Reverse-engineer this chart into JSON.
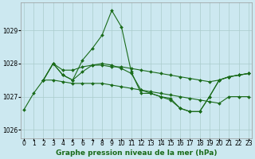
{
  "title": "Graphe pression niveau de la mer (hPa)",
  "bg_color": "#cce8f0",
  "grid_color": "#aacccc",
  "line_color": "#1a6b1a",
  "markersize": 2.0,
  "linewidth": 0.8,
  "series": [
    {
      "name": "spiky_line",
      "x": [
        0,
        1,
        2,
        3,
        4,
        5,
        6,
        7,
        8,
        9,
        10,
        11,
        12,
        13,
        14,
        15,
        16,
        17,
        18,
        19,
        20,
        21,
        22,
        23
      ],
      "y": [
        1026.6,
        1027.1,
        1027.5,
        1028.0,
        1027.65,
        1027.5,
        1028.1,
        1028.45,
        1028.85,
        1029.6,
        1029.1,
        1027.75,
        1027.1,
        1027.1,
        1027.0,
        1026.9,
        1026.65,
        1026.55,
        1026.55,
        1027.0,
        1027.5,
        1027.6,
        1027.65,
        1027.7
      ]
    },
    {
      "name": "upper_flat",
      "x": [
        2,
        3,
        4,
        5,
        6,
        7,
        8,
        9,
        10,
        11,
        12,
        13,
        14,
        15,
        16,
        17,
        18,
        19,
        20,
        21,
        22,
        23
      ],
      "y": [
        1027.5,
        1028.0,
        1027.8,
        1027.8,
        1027.9,
        1027.95,
        1027.95,
        1027.9,
        1027.9,
        1027.85,
        1027.8,
        1027.75,
        1027.7,
        1027.65,
        1027.6,
        1027.55,
        1027.5,
        1027.45,
        1027.5,
        1027.6,
        1027.65,
        1027.7
      ]
    },
    {
      "name": "mid_flat",
      "x": [
        2,
        3,
        4,
        5,
        6,
        7,
        8,
        9,
        10,
        11,
        12,
        13,
        14,
        15,
        16,
        17,
        18,
        19,
        20,
        21,
        22,
        23
      ],
      "y": [
        1027.5,
        1027.5,
        1027.45,
        1027.4,
        1027.4,
        1027.4,
        1027.4,
        1027.35,
        1027.3,
        1027.25,
        1027.2,
        1027.15,
        1027.1,
        1027.05,
        1027.0,
        1026.95,
        1026.9,
        1026.85,
        1026.8,
        1027.0,
        1027.0,
        1027.0
      ]
    },
    {
      "name": "low_dip",
      "x": [
        2,
        3,
        4,
        5,
        6,
        7,
        8,
        9,
        10,
        11,
        12,
        13,
        14,
        15,
        16,
        17,
        18,
        19,
        20,
        21,
        22,
        23
      ],
      "y": [
        1027.5,
        1028.0,
        1027.65,
        1027.5,
        1027.75,
        1027.95,
        1028.0,
        1027.95,
        1027.85,
        1027.7,
        1027.2,
        1027.1,
        1027.0,
        1026.95,
        1026.65,
        1026.55,
        1026.55,
        1027.0,
        1027.5,
        1027.6,
        1027.65,
        1027.7
      ]
    }
  ],
  "yticks": [
    1026,
    1027,
    1028,
    1029
  ],
  "xlim": [
    -0.3,
    23.3
  ],
  "ylim": [
    1025.75,
    1029.85
  ],
  "tick_fontsize": 5.5,
  "title_fontsize": 6.5
}
